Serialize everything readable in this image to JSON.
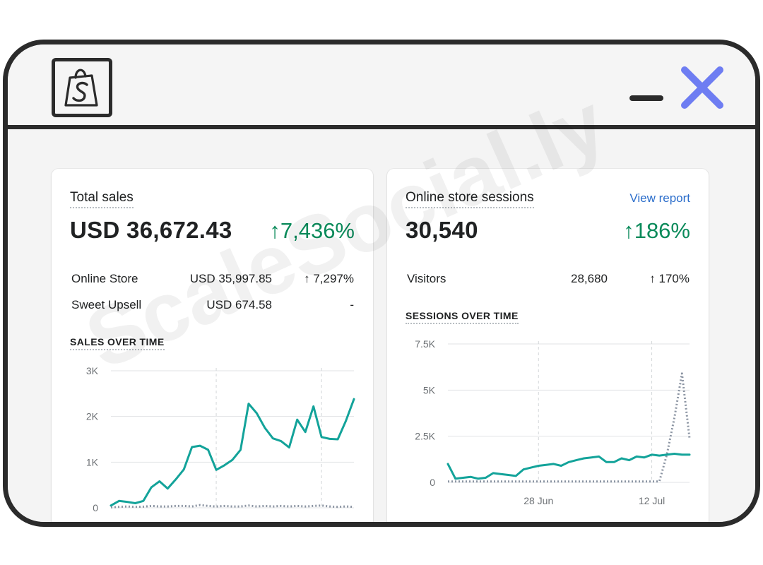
{
  "window": {
    "logo": "shopify-bag-icon",
    "minimize_icon": "minimize-icon",
    "close_icon": "close-icon",
    "close_color": "#6e7df2"
  },
  "watermark": "ScaleSocial.ly",
  "sales_card": {
    "title": "Total sales",
    "value": "USD 36,672.43",
    "change": "↑7,436%",
    "breakdown": [
      {
        "label": "Online Store",
        "value": "USD 35,997.85",
        "change": "↑ 7,297%"
      },
      {
        "label": "Sweet Upsell",
        "value": "USD 674.58",
        "change": "-"
      }
    ],
    "section_title": "SALES OVER TIME"
  },
  "sessions_card": {
    "title": "Online store sessions",
    "link": "View report",
    "value": "30,540",
    "change": "↑186%",
    "breakdown": [
      {
        "label": "Visitors",
        "value": "28,680",
        "change": "↑ 170%"
      }
    ],
    "section_title": "SESSIONS OVER TIME"
  },
  "colors": {
    "accent_line": "#13a39a",
    "compare_line": "#8c95a3",
    "positive": "#0a8a5a",
    "link": "#2c6ecb"
  },
  "chart_data": [
    {
      "type": "line",
      "ylim": [
        0,
        3000
      ],
      "yticks": [
        0,
        1000,
        2000,
        3000
      ],
      "ytick_labels": [
        "0",
        "1K",
        "2K",
        "3K"
      ],
      "x": [
        1,
        2,
        3,
        4,
        5,
        6,
        7,
        8,
        9,
        10,
        11,
        12,
        13,
        14,
        15,
        16,
        17,
        18,
        19,
        20,
        21,
        22,
        23,
        24,
        25,
        26,
        27,
        28,
        29,
        30,
        31
      ],
      "series": [
        {
          "values": [
            50,
            150,
            130,
            100,
            150,
            450,
            580,
            420,
            620,
            840,
            1330,
            1360,
            1270,
            830,
            930,
            1050,
            1270,
            2280,
            2070,
            1750,
            1520,
            1460,
            1320,
            1930,
            1660,
            2220,
            1550,
            1510,
            1500,
            1900,
            2380
          ]
        },
        {
          "values": [
            10,
            20,
            30,
            20,
            25,
            40,
            30,
            30,
            40,
            40,
            30,
            60,
            40,
            30,
            40,
            30,
            30,
            50,
            30,
            40,
            30,
            40,
            30,
            40,
            30,
            40,
            50,
            30,
            20,
            30,
            20
          ]
        }
      ]
    },
    {
      "type": "line",
      "ylim": [
        0,
        7500
      ],
      "yticks": [
        0,
        2500,
        5000,
        7500
      ],
      "ytick_labels": [
        "0",
        "2.5K",
        "5K",
        "7.5K"
      ],
      "x": [
        1,
        2,
        3,
        4,
        5,
        6,
        7,
        8,
        9,
        10,
        11,
        12,
        13,
        14,
        15,
        16,
        17,
        18,
        19,
        20,
        21,
        22,
        23,
        24,
        25,
        26,
        27,
        28,
        29,
        30,
        31,
        32,
        33
      ],
      "xtick_labels": [
        {
          "at": 13,
          "label": "28 Jun"
        },
        {
          "at": 28,
          "label": "12 Jul"
        }
      ],
      "series": [
        {
          "values": [
            1000,
            200,
            250,
            300,
            200,
            250,
            500,
            450,
            400,
            350,
            700,
            800,
            900,
            950,
            1000,
            900,
            1100,
            1200,
            1300,
            1350,
            1400,
            1100,
            1100,
            1300,
            1200,
            1400,
            1350,
            1500,
            1450,
            1500,
            1550,
            1500,
            1500
          ]
        },
        {
          "values": [
            50,
            50,
            50,
            50,
            50,
            50,
            50,
            50,
            50,
            50,
            50,
            50,
            50,
            50,
            50,
            50,
            50,
            50,
            50,
            50,
            50,
            50,
            50,
            50,
            50,
            50,
            50,
            50,
            50,
            1500,
            3500,
            5900,
            2400
          ]
        }
      ]
    }
  ]
}
